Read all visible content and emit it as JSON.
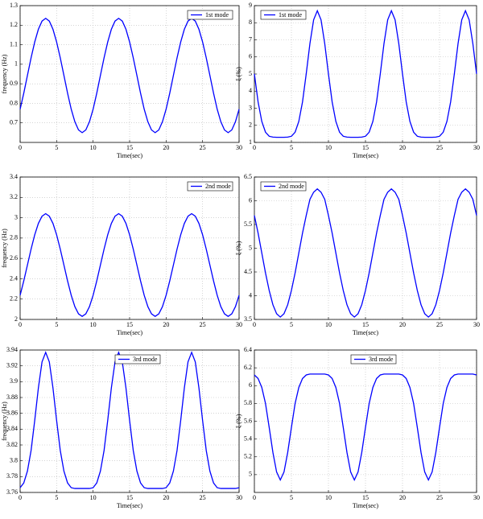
{
  "chart_data": [
    {
      "type": "line",
      "xlabel": "Time(sec)",
      "ylabel": "frequency (Hz)",
      "xlim": [
        0,
        30
      ],
      "xticks": [
        0,
        5,
        10,
        15,
        20,
        25,
        30
      ],
      "ylim": [
        0.6,
        1.3
      ],
      "yticks": [
        0.7,
        0.8,
        0.9,
        1,
        1.1,
        1.2,
        1.3
      ],
      "grid": true,
      "legend": "upper right",
      "x": [
        0,
        0.5,
        1,
        1.5,
        2,
        2.5,
        3,
        3.5,
        4,
        4.5,
        5,
        5.5,
        6,
        6.5,
        7,
        7.5,
        8,
        8.5,
        9,
        9.5,
        10,
        10.5,
        11,
        11.5,
        12,
        12.5,
        13,
        13.5,
        14,
        14.5,
        15,
        15.5,
        16,
        16.5,
        17,
        17.5,
        18,
        18.5,
        19,
        19.5,
        20,
        20.5,
        21,
        21.5,
        22,
        22.5,
        23,
        23.5,
        24,
        24.5,
        25,
        25.5,
        26,
        26.5,
        27,
        27.5,
        28,
        28.5,
        29,
        29.5,
        30
      ],
      "series": [
        {
          "name": "1st mode",
          "color": "#0000ff",
          "values": [
            0.77,
            0.852,
            0.943,
            1.033,
            1.114,
            1.179,
            1.221,
            1.235,
            1.221,
            1.179,
            1.114,
            1.033,
            0.943,
            0.852,
            0.77,
            0.706,
            0.664,
            0.65,
            0.664,
            0.706,
            0.77,
            0.852,
            0.943,
            1.033,
            1.114,
            1.179,
            1.221,
            1.235,
            1.221,
            1.179,
            1.114,
            1.033,
            0.943,
            0.852,
            0.77,
            0.706,
            0.664,
            0.65,
            0.664,
            0.706,
            0.77,
            0.852,
            0.943,
            1.033,
            1.114,
            1.179,
            1.221,
            1.235,
            1.221,
            1.179,
            1.114,
            1.033,
            0.943,
            0.852,
            0.77,
            0.706,
            0.664,
            0.65,
            0.664,
            0.706,
            0.77
          ]
        }
      ]
    },
    {
      "type": "line",
      "xlabel": "Time(sec)",
      "ylabel": "ξ (%)",
      "xlim": [
        0,
        30
      ],
      "xticks": [
        0,
        5,
        10,
        15,
        20,
        25,
        30
      ],
      "ylim": [
        1,
        9
      ],
      "yticks": [
        1,
        2,
        3,
        4,
        5,
        6,
        7,
        8,
        9
      ],
      "grid": true,
      "legend": "upper left",
      "x": [
        0,
        0.5,
        1,
        1.5,
        2,
        2.5,
        3,
        3.5,
        4,
        4.5,
        5,
        5.5,
        6,
        6.5,
        7,
        7.5,
        8,
        8.5,
        9,
        9.5,
        10,
        10.5,
        11,
        11.5,
        12,
        12.5,
        13,
        13.5,
        14,
        14.5,
        15,
        15.5,
        16,
        16.5,
        17,
        17.5,
        18,
        18.5,
        19,
        19.5,
        20,
        20.5,
        21,
        21.5,
        22,
        22.5,
        23,
        23.5,
        24,
        24.5,
        25,
        25.5,
        26,
        26.5,
        27,
        27.5,
        28,
        28.5,
        29,
        29.5,
        30
      ],
      "series": [
        {
          "name": "1st mode",
          "color": "#0000ff",
          "values": [
            5.01,
            3.37,
            2.23,
            1.6,
            1.36,
            1.31,
            1.3,
            1.3,
            1.3,
            1.31,
            1.36,
            1.6,
            2.23,
            3.37,
            5.01,
            6.78,
            8.17,
            8.7,
            8.17,
            6.78,
            5.01,
            3.37,
            2.23,
            1.6,
            1.36,
            1.31,
            1.3,
            1.3,
            1.3,
            1.31,
            1.36,
            1.6,
            2.23,
            3.37,
            5.01,
            6.78,
            8.17,
            8.7,
            8.17,
            6.78,
            5.01,
            3.37,
            2.23,
            1.6,
            1.36,
            1.31,
            1.3,
            1.3,
            1.3,
            1.31,
            1.36,
            1.6,
            2.23,
            3.37,
            5.01,
            6.78,
            8.17,
            8.7,
            8.17,
            6.78,
            5.01
          ]
        }
      ]
    },
    {
      "type": "line",
      "xlabel": "Time(sec)",
      "ylabel": "frequency (Hz)",
      "xlim": [
        0,
        30
      ],
      "xticks": [
        0,
        5,
        10,
        15,
        20,
        25,
        30
      ],
      "ylim": [
        2,
        3.4
      ],
      "yticks": [
        2,
        2.2,
        2.4,
        2.6,
        2.8,
        3,
        3.2,
        3.4
      ],
      "grid": true,
      "legend": "upper right",
      "x": [
        0,
        0.5,
        1,
        1.5,
        2,
        2.5,
        3,
        3.5,
        4,
        4.5,
        5,
        5.5,
        6,
        6.5,
        7,
        7.5,
        8,
        8.5,
        9,
        9.5,
        10,
        10.5,
        11,
        11.5,
        12,
        12.5,
        13,
        13.5,
        14,
        14.5,
        15,
        15.5,
        16,
        16.5,
        17,
        17.5,
        18,
        18.5,
        19,
        19.5,
        20,
        20.5,
        21,
        21.5,
        22,
        22.5,
        23,
        23.5,
        24,
        24.5,
        25,
        25.5,
        26,
        26.5,
        27,
        27.5,
        28,
        28.5,
        29,
        29.5,
        30
      ],
      "series": [
        {
          "name": "2nd mode",
          "color": "#0000ff",
          "values": [
            2.238,
            2.379,
            2.535,
            2.691,
            2.832,
            2.944,
            3.015,
            3.04,
            3.015,
            2.944,
            2.832,
            2.691,
            2.535,
            2.379,
            2.238,
            2.126,
            2.055,
            2.03,
            2.055,
            2.126,
            2.238,
            2.379,
            2.535,
            2.691,
            2.832,
            2.944,
            3.015,
            3.04,
            3.015,
            2.944,
            2.832,
            2.691,
            2.535,
            2.379,
            2.238,
            2.126,
            2.055,
            2.03,
            2.055,
            2.126,
            2.238,
            2.379,
            2.535,
            2.691,
            2.832,
            2.944,
            3.015,
            3.04,
            3.015,
            2.944,
            2.832,
            2.691,
            2.535,
            2.379,
            2.238,
            2.126,
            2.055,
            2.03,
            2.055,
            2.126,
            2.238
          ]
        }
      ]
    },
    {
      "type": "line",
      "xlabel": "Time(sec)",
      "ylabel": "ξ (%)",
      "xlim": [
        0,
        30
      ],
      "xticks": [
        0,
        5,
        10,
        15,
        20,
        25,
        30
      ],
      "ylim": [
        3.5,
        6.5
      ],
      "yticks": [
        3.5,
        4,
        4.5,
        5,
        5.5,
        6,
        6.5
      ],
      "grid": true,
      "legend": "upper left",
      "x": [
        0,
        0.5,
        1,
        1.5,
        2,
        2.5,
        3,
        3.5,
        4,
        4.5,
        5,
        5.5,
        6,
        6.5,
        7,
        7.5,
        8,
        8.5,
        9,
        9.5,
        10,
        10.5,
        11,
        11.5,
        12,
        12.5,
        13,
        13.5,
        14,
        14.5,
        15,
        15.5,
        16,
        16.5,
        17,
        17.5,
        18,
        18.5,
        19,
        19.5,
        20,
        20.5,
        21,
        21.5,
        22,
        22.5,
        23,
        23.5,
        24,
        24.5,
        25,
        25.5,
        26,
        26.5,
        27,
        27.5,
        28,
        28.5,
        29,
        29.5,
        30
      ],
      "series": [
        {
          "name": "2nd mode",
          "color": "#0000ff",
          "values": [
            5.69,
            5.32,
            4.9,
            4.48,
            4.11,
            3.81,
            3.62,
            3.55,
            3.62,
            3.81,
            4.11,
            4.48,
            4.9,
            5.32,
            5.69,
            6.03,
            6.18,
            6.25,
            6.18,
            6.03,
            5.69,
            5.32,
            4.9,
            4.48,
            4.11,
            3.81,
            3.62,
            3.55,
            3.62,
            3.81,
            4.11,
            4.48,
            4.9,
            5.32,
            5.69,
            6.03,
            6.18,
            6.25,
            6.18,
            6.03,
            5.69,
            5.32,
            4.9,
            4.48,
            4.11,
            3.81,
            3.62,
            3.55,
            3.62,
            3.81,
            4.11,
            4.48,
            4.9,
            5.32,
            5.69,
            6.03,
            6.18,
            6.25,
            6.18,
            6.03,
            5.69
          ]
        }
      ]
    },
    {
      "type": "line",
      "xlabel": "Time(sec)",
      "ylabel": "frequency (Hz)",
      "xlim": [
        0,
        30
      ],
      "xticks": [
        0,
        5,
        10,
        15,
        20,
        25,
        30
      ],
      "ylim": [
        3.76,
        3.94
      ],
      "yticks": [
        3.76,
        3.78,
        3.8,
        3.82,
        3.84,
        3.86,
        3.88,
        3.9,
        3.92,
        3.94
      ],
      "grid": true,
      "legend": "upper center",
      "x": [
        0,
        0.5,
        1,
        1.5,
        2,
        2.5,
        3,
        3.5,
        4,
        4.5,
        5,
        5.5,
        6,
        6.5,
        7,
        7.5,
        8,
        8.5,
        9,
        9.5,
        10,
        10.5,
        11,
        11.5,
        12,
        12.5,
        13,
        13.5,
        14,
        14.5,
        15,
        15.5,
        16,
        16.5,
        17,
        17.5,
        18,
        18.5,
        19,
        19.5,
        20,
        20.5,
        21,
        21.5,
        22,
        22.5,
        23,
        23.5,
        24,
        24.5,
        25,
        25.5,
        26,
        26.5,
        27,
        27.5,
        28,
        28.5,
        29,
        29.5,
        30
      ],
      "series": [
        {
          "name": "3rd mode",
          "color": "#0000ff",
          "values": [
            3.766,
            3.772,
            3.787,
            3.813,
            3.851,
            3.892,
            3.925,
            3.937,
            3.925,
            3.892,
            3.851,
            3.813,
            3.787,
            3.772,
            3.766,
            3.765,
            3.765,
            3.765,
            3.765,
            3.765,
            3.766,
            3.772,
            3.787,
            3.813,
            3.851,
            3.892,
            3.925,
            3.937,
            3.925,
            3.892,
            3.851,
            3.813,
            3.787,
            3.772,
            3.766,
            3.765,
            3.765,
            3.765,
            3.765,
            3.765,
            3.766,
            3.772,
            3.787,
            3.813,
            3.851,
            3.892,
            3.925,
            3.937,
            3.925,
            3.892,
            3.851,
            3.813,
            3.787,
            3.772,
            3.766,
            3.765,
            3.765,
            3.765,
            3.765,
            3.765,
            3.766
          ]
        }
      ]
    },
    {
      "type": "line",
      "xlabel": "Time(sec)",
      "ylabel": "ξ (%)",
      "xlim": [
        0,
        30
      ],
      "xticks": [
        0,
        5,
        10,
        15,
        20,
        25,
        30
      ],
      "ylim": [
        4.8,
        6.4
      ],
      "yticks": [
        5,
        5.2,
        5.4,
        5.6,
        5.8,
        6,
        6.2,
        6.4
      ],
      "grid": true,
      "legend": "upper center",
      "x": [
        0,
        0.5,
        1,
        1.5,
        2,
        2.5,
        3,
        3.5,
        4,
        4.5,
        5,
        5.5,
        6,
        6.5,
        7,
        7.5,
        8,
        8.5,
        9,
        9.5,
        10,
        10.5,
        11,
        11.5,
        12,
        12.5,
        13,
        13.5,
        14,
        14.5,
        15,
        15.5,
        16,
        16.5,
        17,
        17.5,
        18,
        18.5,
        19,
        19.5,
        20,
        20.5,
        21,
        21.5,
        22,
        22.5,
        23,
        23.5,
        24,
        24.5,
        25,
        25.5,
        26,
        26.5,
        27,
        27.5,
        28,
        28.5,
        29,
        29.5,
        30
      ],
      "series": [
        {
          "name": "3rd mode",
          "color": "#0000ff",
          "values": [
            6.12,
            6.08,
            5.98,
            5.8,
            5.53,
            5.25,
            5.03,
            4.94,
            5.03,
            5.25,
            5.53,
            5.8,
            5.98,
            6.08,
            6.12,
            6.13,
            6.13,
            6.13,
            6.13,
            6.13,
            6.12,
            6.08,
            5.98,
            5.8,
            5.53,
            5.25,
            5.03,
            4.94,
            5.03,
            5.25,
            5.53,
            5.8,
            5.98,
            6.08,
            6.12,
            6.13,
            6.13,
            6.13,
            6.13,
            6.13,
            6.12,
            6.08,
            5.98,
            5.8,
            5.53,
            5.25,
            5.03,
            4.94,
            5.03,
            5.25,
            5.53,
            5.8,
            5.98,
            6.08,
            6.12,
            6.13,
            6.13,
            6.13,
            6.13,
            6.13,
            6.12
          ]
        }
      ]
    }
  ]
}
